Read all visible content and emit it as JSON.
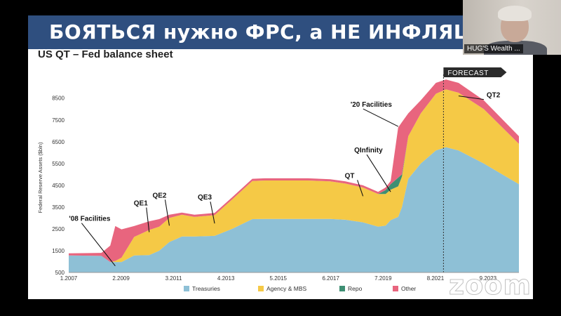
{
  "banner": {
    "text": "БОЯТЬСЯ нужно ФРС, а НЕ ИНФЛЯЦ"
  },
  "video": {
    "participant_name": "HUG'S Wealth ..."
  },
  "watermark": {
    "text": "zoom"
  },
  "chart_data": {
    "type": "area",
    "title": "US QT – Fed balance sheet",
    "ylabel": "Federal Reserve Assets ($bln)",
    "xlabel": "",
    "ylim": [
      500,
      9200
    ],
    "yticks": [
      500,
      1500,
      2500,
      3500,
      4500,
      5500,
      6500,
      7500,
      8500
    ],
    "xlim": [
      2007.0,
      2024.9
    ],
    "xtick_labels": [
      "1.2007",
      "2.2009",
      "3.2011",
      "4.2013",
      "5.2015",
      "6.2017",
      "7.2019",
      "8.2021",
      "9.2023"
    ],
    "xtick_values": [
      2007.0,
      2009.08,
      2011.17,
      2013.25,
      2015.33,
      2017.42,
      2019.5,
      2021.58,
      2023.67
    ],
    "stacked": true,
    "grid": false,
    "legend_position": "bottom",
    "x": [
      2007.0,
      2008.3,
      2008.65,
      2008.85,
      2009.1,
      2009.6,
      2010.2,
      2010.6,
      2011.0,
      2011.5,
      2012.0,
      2012.8,
      2013.5,
      2014.3,
      2014.8,
      2015.5,
      2016.5,
      2017.4,
      2018.0,
      2018.7,
      2019.3,
      2019.6,
      2019.8,
      2020.1,
      2020.25,
      2020.5,
      2021.0,
      2021.6,
      2022.0,
      2022.5,
      2023.5,
      2024.9
    ],
    "series": [
      {
        "name": "Treasuries",
        "color": "#8ec0d6",
        "values": [
          780,
          760,
          480,
          480,
          480,
          780,
          800,
          1000,
          1400,
          1650,
          1650,
          1680,
          2000,
          2450,
          2460,
          2460,
          2460,
          2460,
          2420,
          2300,
          2100,
          2150,
          2400,
          2550,
          3000,
          4300,
          5000,
          5600,
          5750,
          5600,
          5000,
          4050
        ]
      },
      {
        "name": "Agency & MBS",
        "color": "#f5c946",
        "values": [
          0,
          0,
          0,
          50,
          200,
          850,
          1150,
          1100,
          1100,
          1000,
          900,
          950,
          1350,
          1750,
          1760,
          1760,
          1760,
          1720,
          1660,
          1600,
          1500,
          1450,
          1400,
          1400,
          1400,
          1950,
          2300,
          2600,
          2650,
          2650,
          2500,
          1850
        ]
      },
      {
        "name": "Repo",
        "color": "#3e8f73",
        "values": [
          0,
          0,
          0,
          0,
          0,
          0,
          0,
          0,
          0,
          0,
          0,
          0,
          0,
          0,
          0,
          0,
          0,
          0,
          0,
          0,
          0,
          180,
          250,
          400,
          100,
          0,
          0,
          0,
          0,
          0,
          0,
          0
        ]
      },
      {
        "name": "Other",
        "color": "#e8657e",
        "values": [
          100,
          140,
          750,
          1600,
          1300,
          500,
          400,
          350,
          150,
          100,
          100,
          100,
          100,
          100,
          100,
          100,
          100,
          100,
          100,
          100,
          100,
          120,
          150,
          2300,
          2400,
          1050,
          600,
          500,
          450,
          450,
          400,
          350
        ]
      }
    ],
    "forecast": {
      "label": "FORECAST",
      "start_x": 2021.9
    },
    "annotations": [
      {
        "text": "'08 Facilities",
        "x": 2008.85,
        "y": 800
      },
      {
        "text": "QE1",
        "x": 2010.2,
        "y": 2350
      },
      {
        "text": "QE2",
        "x": 2011.0,
        "y": 2650
      },
      {
        "text": "QE3",
        "x": 2012.8,
        "y": 2750
      },
      {
        "text": "QT",
        "x": 2018.7,
        "y": 4000
      },
      {
        "text": "QInfinity",
        "x": 2019.8,
        "y": 4200
      },
      {
        "text": "'20 Facilities",
        "x": 2020.1,
        "y": 7200
      },
      {
        "text": "QT2",
        "x": 2022.5,
        "y": 8600
      }
    ]
  }
}
